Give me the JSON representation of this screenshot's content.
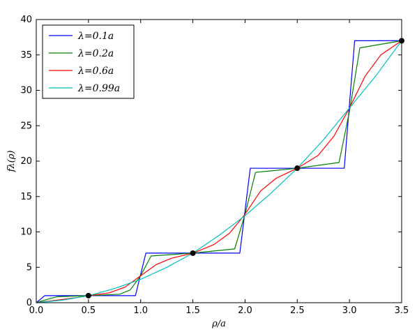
{
  "chart_data": {
    "type": "line",
    "title": "",
    "xlabel": "ρ/a",
    "ylabel": "fλ(ρ)",
    "xlim": [
      0.0,
      3.5
    ],
    "ylim": [
      0,
      40
    ],
    "xticks": [
      0.0,
      0.5,
      1.0,
      1.5,
      2.0,
      2.5,
      3.0,
      3.5
    ],
    "xtick_labels": [
      "0.0",
      "0.5",
      "1.0",
      "1.5",
      "2.0",
      "2.5",
      "3.0",
      "3.5"
    ],
    "yticks": [
      0,
      5,
      10,
      15,
      20,
      25,
      30,
      35,
      40
    ],
    "ytick_labels": [
      "0",
      "5",
      "10",
      "15",
      "20",
      "25",
      "30",
      "35",
      "40"
    ],
    "grid": false,
    "legend_position": "top-left",
    "series": [
      {
        "name": "λ=0.1a",
        "color": "#0000ff",
        "points": [
          [
            0.0,
            0.0
          ],
          [
            0.05,
            0.6
          ],
          [
            0.08,
            1.0
          ],
          [
            0.95,
            1.0
          ],
          [
            1.0,
            4.0
          ],
          [
            1.05,
            7.0
          ],
          [
            1.95,
            7.0
          ],
          [
            2.0,
            13.0
          ],
          [
            2.05,
            19.0
          ],
          [
            2.95,
            19.0
          ],
          [
            3.0,
            28.0
          ],
          [
            3.05,
            37.0
          ],
          [
            3.5,
            37.0
          ]
        ]
      },
      {
        "name": "λ=0.2a",
        "color": "#008000",
        "points": [
          [
            0.0,
            0.0
          ],
          [
            0.1,
            0.45
          ],
          [
            0.2,
            0.85
          ],
          [
            0.5,
            1.0
          ],
          [
            0.8,
            1.2
          ],
          [
            0.9,
            1.8
          ],
          [
            1.0,
            3.8
          ],
          [
            1.1,
            6.6
          ],
          [
            1.5,
            7.0
          ],
          [
            1.9,
            7.6
          ],
          [
            2.0,
            12.5
          ],
          [
            2.1,
            18.4
          ],
          [
            2.5,
            19.0
          ],
          [
            2.9,
            19.8
          ],
          [
            3.0,
            27.0
          ],
          [
            3.1,
            36.0
          ],
          [
            3.5,
            37.0
          ]
        ]
      },
      {
        "name": "λ=0.6a",
        "color": "#ff0000",
        "points": [
          [
            0.0,
            0.0
          ],
          [
            0.2,
            0.35
          ],
          [
            0.4,
            0.75
          ],
          [
            0.5,
            1.0
          ],
          [
            0.7,
            1.4
          ],
          [
            0.85,
            2.2
          ],
          [
            1.0,
            3.8
          ],
          [
            1.15,
            5.4
          ],
          [
            1.3,
            6.3
          ],
          [
            1.5,
            7.0
          ],
          [
            1.7,
            8.2
          ],
          [
            1.85,
            9.8
          ],
          [
            2.0,
            12.5
          ],
          [
            2.15,
            15.8
          ],
          [
            2.3,
            17.6
          ],
          [
            2.5,
            19.0
          ],
          [
            2.7,
            20.8
          ],
          [
            2.85,
            23.5
          ],
          [
            3.0,
            27.5
          ],
          [
            3.15,
            32.0
          ],
          [
            3.3,
            35.0
          ],
          [
            3.5,
            37.0
          ]
        ]
      },
      {
        "name": "λ=0.99a",
        "color": "#00bfbf",
        "points": [
          [
            0.0,
            0.0
          ],
          [
            0.25,
            0.35
          ],
          [
            0.5,
            1.0
          ],
          [
            0.75,
            2.0
          ],
          [
            1.0,
            3.3
          ],
          [
            1.25,
            5.0
          ],
          [
            1.5,
            7.0
          ],
          [
            1.75,
            9.5
          ],
          [
            2.0,
            12.3
          ],
          [
            2.25,
            15.5
          ],
          [
            2.5,
            19.0
          ],
          [
            2.75,
            23.0
          ],
          [
            3.0,
            27.5
          ],
          [
            3.25,
            32.0
          ],
          [
            3.5,
            37.0
          ]
        ]
      }
    ],
    "markers": [
      {
        "x": 0.5,
        "y": 1.0
      },
      {
        "x": 1.5,
        "y": 7.0
      },
      {
        "x": 2.5,
        "y": 19.0
      },
      {
        "x": 3.5,
        "y": 37.0
      }
    ]
  }
}
